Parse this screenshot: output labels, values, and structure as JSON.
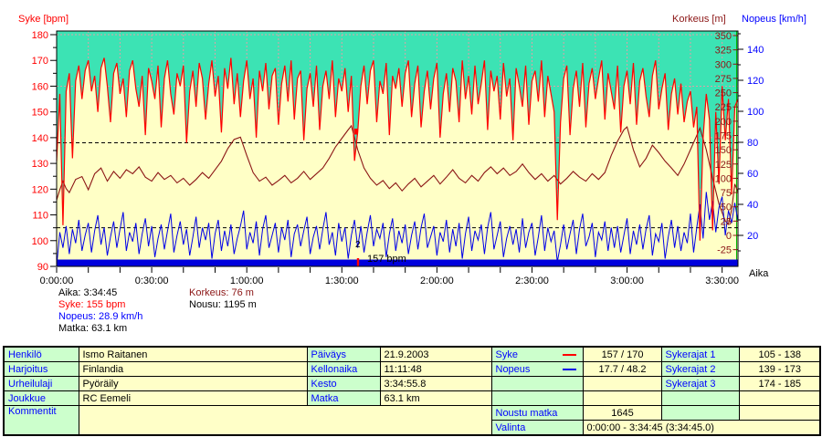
{
  "chart_data": {
    "type": "line",
    "title_syke": "Syke [bpm]",
    "title_korkeus": "Korkeus [m]",
    "title_nopeus": "Nopeus [km/h]",
    "x_axis": {
      "label": "Aika",
      "duration_min": 215,
      "minor_tick_step_min": 10,
      "label_step_min": 30,
      "tick_labels": [
        "0:00:00",
        "0:30:00",
        "1:00:00",
        "1:30:00",
        "2:00:00",
        "2:30:00",
        "3:00:00",
        "3:30:00"
      ]
    },
    "syke_axis": {
      "min": 90,
      "max": 180,
      "step": 10,
      "ticks": [
        180,
        170,
        160,
        150,
        140,
        130,
        120,
        110,
        100,
        90
      ]
    },
    "korkeus_axis": {
      "min": -25,
      "max": 350,
      "step": 25,
      "ticks": [
        350,
        325,
        300,
        275,
        250,
        225,
        200,
        175,
        150,
        125,
        100,
        75,
        50,
        25,
        0,
        -25
      ]
    },
    "nopeus_axis": {
      "min": 0,
      "max": 140,
      "step": 20,
      "ticks": [
        140,
        120,
        100,
        80,
        60,
        40,
        20
      ]
    },
    "zone_lines_bpm": [
      138,
      105
    ],
    "grid": {
      "h_lines_bpm": [
        180,
        160,
        140,
        120,
        100
      ],
      "v_step_min": 10
    },
    "lap_marker": {
      "time_min": 95.1,
      "hr_at_lap": 142,
      "lap_label": "2",
      "lap_text": "157 bpm"
    },
    "series": [
      {
        "name": "syke_bpm",
        "sample_step_min": 1,
        "values": [
          131,
          157,
          106,
          158,
          165,
          132,
          162,
          168,
          155,
          166,
          170,
          158,
          164,
          150,
          167,
          171,
          160,
          146,
          165,
          169,
          157,
          163,
          148,
          166,
          170,
          159,
          152,
          164,
          141,
          167,
          162,
          155,
          168,
          144,
          163,
          170,
          157,
          149,
          165,
          160,
          168,
          138,
          158,
          166,
          152,
          169,
          163,
          147,
          161,
          170,
          156,
          164,
          142,
          167,
          159,
          171,
          153,
          165,
          148,
          162,
          170,
          155,
          163,
          140,
          166,
          158,
          169,
          151,
          164,
          167,
          145,
          161,
          168,
          154,
          170,
          147,
          163,
          166,
          139,
          159,
          165,
          152,
          168,
          143,
          160,
          166,
          155,
          170,
          148,
          163,
          158,
          167,
          150,
          164,
          131,
          142,
          160,
          168,
          153,
          166,
          170,
          146,
          162,
          157,
          169,
          141,
          164,
          159,
          167,
          152,
          165,
          170,
          148,
          161,
          168,
          144,
          158,
          166,
          151,
          163,
          169,
          140,
          157,
          165,
          150,
          167,
          162,
          146,
          170,
          155,
          164,
          149,
          168,
          153,
          161,
          170,
          143,
          166,
          158,
          164,
          147,
          169,
          156,
          163,
          139,
          167,
          160,
          152,
          168,
          145,
          162,
          166,
          154,
          170,
          148,
          164,
          157,
          150,
          108,
          146,
          163,
          168,
          141,
          159,
          166,
          152,
          169,
          144,
          161,
          167,
          155,
          163,
          170,
          147,
          165,
          158,
          151,
          168,
          142,
          160,
          166,
          153,
          169,
          145,
          162,
          167,
          156,
          148,
          164,
          170,
          151,
          159,
          165,
          143,
          157,
          163,
          149,
          161,
          146,
          154,
          158,
          144,
          152,
          100,
          140,
          157,
          147,
          104,
          150,
          122,
          160,
          139,
          155,
          118,
          152,
          155
        ]
      },
      {
        "name": "nopeus_kmh",
        "sample_step_min": 1,
        "values": [
          0,
          22,
          12,
          26,
          8,
          24,
          15,
          30,
          10,
          20,
          28,
          9,
          23,
          33,
          14,
          25,
          7,
          19,
          29,
          12,
          24,
          35,
          10,
          22,
          16,
          28,
          8,
          21,
          31,
          13,
          26,
          6,
          18,
          27,
          11,
          23,
          34,
          9,
          20,
          29,
          14,
          24,
          7,
          19,
          32,
          12,
          25,
          17,
          28,
          5,
          21,
          30,
          10,
          23,
          13,
          27,
          8,
          18,
          26,
          36,
          11,
          22,
          15,
          29,
          7,
          24,
          33,
          12,
          20,
          28,
          9,
          25,
          17,
          30,
          6,
          21,
          27,
          13,
          23,
          32,
          8,
          19,
          26,
          11,
          24,
          35,
          14,
          22,
          7,
          28,
          16,
          25,
          5,
          20,
          30,
          12,
          26,
          9,
          22,
          33,
          13,
          24,
          18,
          28,
          6,
          21,
          31,
          10,
          23,
          15,
          27,
          8,
          20,
          29,
          11,
          25,
          34,
          12,
          19,
          26,
          7,
          22,
          16,
          30,
          9,
          24,
          13,
          28,
          5,
          21,
          32,
          10,
          23,
          17,
          27,
          8,
          25,
          35,
          11,
          20,
          29,
          6,
          18,
          26,
          14,
          24,
          9,
          31,
          12,
          22,
          28,
          7,
          19,
          33,
          10,
          25,
          16,
          23,
          3,
          14,
          27,
          11,
          21,
          30,
          8,
          24,
          34,
          13,
          19,
          28,
          6,
          22,
          17,
          29,
          10,
          25,
          12,
          26,
          9,
          20,
          31,
          8,
          23,
          14,
          27,
          11,
          24,
          33,
          7,
          21,
          16,
          28,
          5,
          19,
          30,
          12,
          26,
          10,
          22,
          15,
          34,
          9,
          25,
          40,
          18,
          48,
          30,
          42,
          22,
          38,
          45,
          20,
          36,
          28,
          41,
          29
        ]
      },
      {
        "name": "korkeus_m",
        "points": [
          [
            0,
            62
          ],
          [
            1,
            80
          ],
          [
            2,
            95
          ],
          [
            3,
            82
          ],
          [
            4,
            75
          ],
          [
            6,
            98
          ],
          [
            8,
            103
          ],
          [
            10,
            80
          ],
          [
            12,
            108
          ],
          [
            14,
            118
          ],
          [
            16,
            95
          ],
          [
            18,
            112
          ],
          [
            20,
            100
          ],
          [
            22,
            115
          ],
          [
            24,
            108
          ],
          [
            26,
            120
          ],
          [
            28,
            102
          ],
          [
            30,
            95
          ],
          [
            32,
            110
          ],
          [
            34,
            98
          ],
          [
            36,
            105
          ],
          [
            38,
            92
          ],
          [
            40,
            100
          ],
          [
            42,
            88
          ],
          [
            44,
            98
          ],
          [
            46,
            110
          ],
          [
            48,
            100
          ],
          [
            50,
            115
          ],
          [
            52,
            130
          ],
          [
            54,
            152
          ],
          [
            56,
            168
          ],
          [
            58,
            172
          ],
          [
            60,
            140
          ],
          [
            62,
            110
          ],
          [
            64,
            95
          ],
          [
            66,
            102
          ],
          [
            68,
            88
          ],
          [
            70,
            96
          ],
          [
            72,
            105
          ],
          [
            74,
            92
          ],
          [
            76,
            100
          ],
          [
            78,
            112
          ],
          [
            80,
            98
          ],
          [
            82,
            108
          ],
          [
            84,
            118
          ],
          [
            86,
            135
          ],
          [
            88,
            155
          ],
          [
            90,
            170
          ],
          [
            92,
            185
          ],
          [
            93,
            192
          ],
          [
            95,
            150
          ],
          [
            97,
            118
          ],
          [
            99,
            100
          ],
          [
            101,
            88
          ],
          [
            103,
            96
          ],
          [
            105,
            82
          ],
          [
            107,
            92
          ],
          [
            109,
            78
          ],
          [
            111,
            90
          ],
          [
            113,
            100
          ],
          [
            115,
            85
          ],
          [
            117,
            95
          ],
          [
            119,
            105
          ],
          [
            121,
            90
          ],
          [
            123,
            102
          ],
          [
            125,
            115
          ],
          [
            127,
            100
          ],
          [
            129,
            92
          ],
          [
            131,
            105
          ],
          [
            133,
            95
          ],
          [
            135,
            110
          ],
          [
            137,
            120
          ],
          [
            139,
            108
          ],
          [
            141,
            118
          ],
          [
            143,
            105
          ],
          [
            145,
            112
          ],
          [
            147,
            125
          ],
          [
            149,
            110
          ],
          [
            151,
            98
          ],
          [
            153,
            108
          ],
          [
            155,
            95
          ],
          [
            157,
            105
          ],
          [
            159,
            90
          ],
          [
            161,
            100
          ],
          [
            163,
            112
          ],
          [
            165,
            102
          ],
          [
            167,
            95
          ],
          [
            169,
            108
          ],
          [
            171,
            98
          ],
          [
            173,
            110
          ],
          [
            175,
            140
          ],
          [
            177,
            165
          ],
          [
            179,
            185
          ],
          [
            180,
            190
          ],
          [
            182,
            150
          ],
          [
            184,
            120
          ],
          [
            186,
            135
          ],
          [
            188,
            158
          ],
          [
            190,
            145
          ],
          [
            192,
            130
          ],
          [
            194,
            118
          ],
          [
            196,
            105
          ],
          [
            198,
            125
          ],
          [
            200,
            150
          ],
          [
            202,
            175
          ],
          [
            203,
            188
          ],
          [
            205,
            150
          ],
          [
            207,
            100
          ],
          [
            209,
            55
          ],
          [
            211,
            25
          ],
          [
            212,
            20
          ],
          [
            213,
            45
          ],
          [
            214,
            90
          ],
          [
            215,
            76
          ]
        ]
      }
    ]
  },
  "stats": {
    "aika": "Aika: 3:34:45",
    "syke": "Syke: 155 bpm",
    "nopeus": "Nopeus: 28.9 km/h",
    "matka": "Matka: 63.1 km",
    "korkeus": "Korkeus: 76 m",
    "nousu": "Nousu: 1195 m"
  },
  "table": {
    "rows_left": [
      {
        "label": "Henkilö",
        "value": "Ismo Raitanen"
      },
      {
        "label": "Harjoitus",
        "value": "Finlandia"
      },
      {
        "label": "Urheilulaji",
        "value": "Pyöräily"
      },
      {
        "label": "Joukkue",
        "value": "RC Eemeli"
      }
    ],
    "kommentit_label": "Kommentit",
    "kommentit_value": "",
    "rows_mid": [
      {
        "label": "Päiväys",
        "value": "21.9.2003"
      },
      {
        "label": "Kellonaika",
        "value": "11:11:48"
      },
      {
        "label": "Kesto",
        "value": "3:34:55.8"
      },
      {
        "label": "Matka",
        "value": "63.1 km"
      }
    ],
    "syke_label": "Syke",
    "syke_value": "157 / 170",
    "nopeus_label": "Nopeus",
    "nopeus_value": "17.7 / 48.2",
    "sykerajat": [
      {
        "label": "Sykerajat 1",
        "value": "105 - 138"
      },
      {
        "label": "Sykerajat 2",
        "value": "139 - 173"
      },
      {
        "label": "Sykerajat 3",
        "value": "174 - 185"
      }
    ],
    "noustu_matka_label": "Noustu matka",
    "noustu_matka_value": "1645",
    "valinta_label": "Valinta",
    "valinta_value": "0:00:00 - 3:34:45 (3:34:45.0)"
  },
  "colors": {
    "teal_bg": "#3ce3b4",
    "fill_yellow": "#ffffc6",
    "hr_red": "#ff0000",
    "korkeus_maroon": "#8b1515",
    "nopeus_blue": "#0000e8",
    "grid_pink": "#dfa0a8",
    "cursor_green": "#00b400",
    "bottom_bar_blue": "#0000dd",
    "label_blue": "#0000ff",
    "table_label_bg": "#ccffcc",
    "table_value_bg": "#ffffc8"
  }
}
